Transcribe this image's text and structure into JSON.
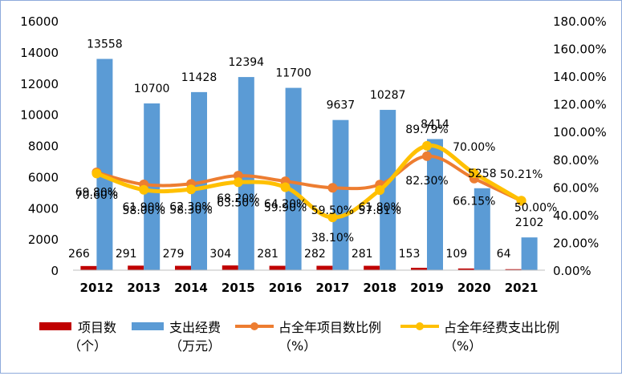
{
  "chart_data": {
    "type": "bar",
    "categories": [
      "2012",
      "2013",
      "2014",
      "2015",
      "2016",
      "2017",
      "2018",
      "2019",
      "2020",
      "2021"
    ],
    "series": [
      {
        "name": "项目数（个）",
        "kind": "bar",
        "axis": "left",
        "color": "#c00000",
        "values": [
          266,
          291,
          279,
          304,
          281,
          282,
          281,
          153,
          109,
          64
        ],
        "labels": [
          "266",
          "291",
          "279",
          "304",
          "281",
          "282",
          "281",
          "153",
          "109",
          "64"
        ]
      },
      {
        "name": "支出经费（万元）",
        "kind": "bar",
        "axis": "left",
        "color": "#5b9bd5",
        "values": [
          13558,
          10700,
          11428,
          12394,
          11700,
          9637,
          10287,
          8414,
          5258,
          2102
        ],
        "labels": [
          "13558",
          "10700",
          "11428",
          "12394",
          "11700",
          "9637",
          "10287",
          "8414",
          "5258",
          "2102"
        ]
      },
      {
        "name": "占全年项目数比例（%）",
        "kind": "line",
        "axis": "right",
        "color": "#ed7d31",
        "values": [
          70.6,
          61.9,
          62.3,
          68.2,
          64.2,
          59.5,
          61.8,
          82.3,
          66.15,
          50.0
        ],
        "labels": [
          "70.60%",
          "61.90%",
          "62.30%",
          "68.20%",
          "64.20%",
          "59.50%",
          "61.80%",
          "82.30%",
          "66.15%",
          "50.00%"
        ]
      },
      {
        "name": "占全年经费支出比例（%）",
        "kind": "line",
        "axis": "right",
        "color": "#ffc000",
        "values": [
          69.8,
          58.0,
          58.3,
          63.5,
          59.9,
          38.1,
          57.81,
          89.79,
          70.0,
          50.21
        ],
        "labels": [
          "69.80%",
          "58.00%",
          "58.30%",
          "63.50%",
          "59.90%",
          "38.10%",
          "57.81%",
          "89.79%",
          "70.00%",
          "50.21%"
        ]
      }
    ],
    "y_left": {
      "min": 0,
      "max": 16000,
      "step": 2000,
      "ticks": [
        "0",
        "2000",
        "4000",
        "6000",
        "8000",
        "10000",
        "12000",
        "14000",
        "16000"
      ]
    },
    "y_right": {
      "min": 0,
      "max": 180,
      "step": 20,
      "ticks": [
        "0.00%",
        "20.00%",
        "40.00%",
        "60.00%",
        "80.00%",
        "100.00%",
        "120.00%",
        "140.00%",
        "160.00%",
        "180.00%"
      ]
    },
    "grid": false,
    "legend_position": "bottom"
  },
  "legend": [
    {
      "line1": "项目数",
      "line2": "（个）"
    },
    {
      "line1": "支出经费",
      "line2": "（万元）"
    },
    {
      "line1": "占全年项目数比例",
      "line2": "（%）"
    },
    {
      "line1": "占全年经费支出比例",
      "line2": "（%）"
    }
  ]
}
